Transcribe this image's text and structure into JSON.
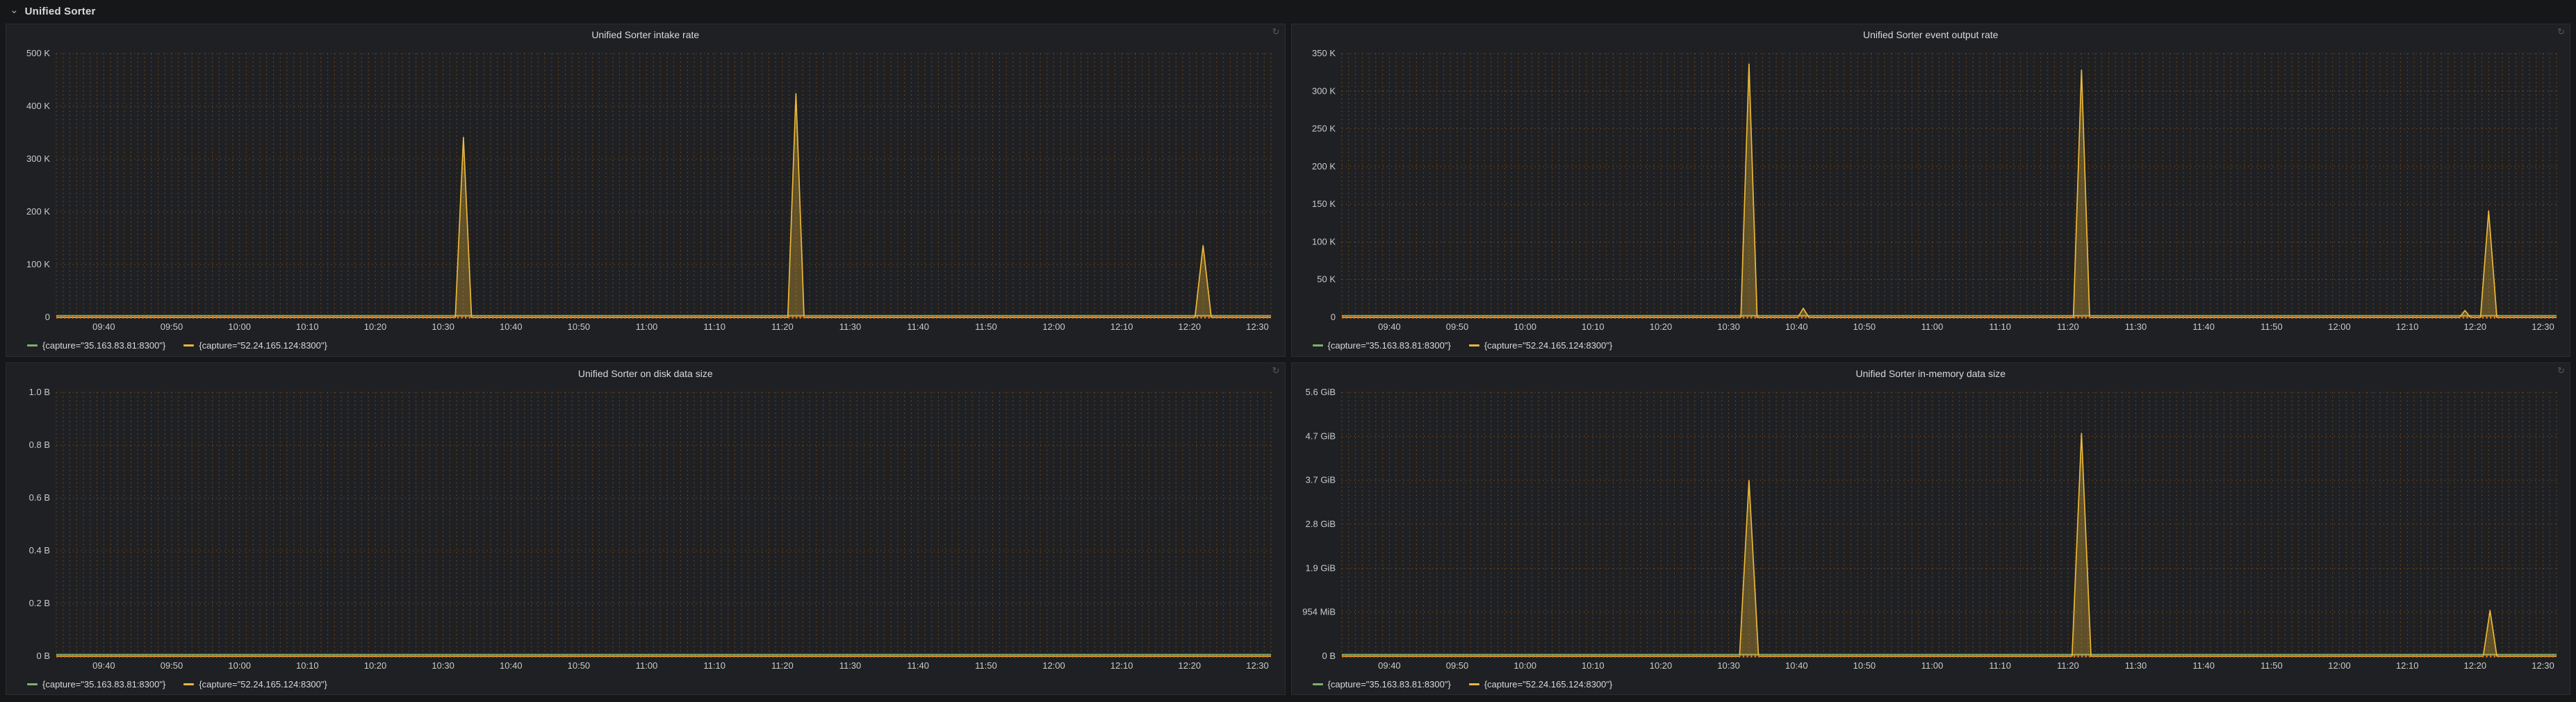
{
  "row": {
    "title": "Unified Sorter",
    "collapse_icon": "⌄"
  },
  "colors": {
    "series_green": "#7eb26d",
    "series_yellow": "#eab839",
    "baseline_orange": "#e0751d",
    "grid_dots": "#d97c17",
    "panel_bg": "#1f2023",
    "page_bg": "#161719"
  },
  "x_axis": {
    "domain_minutes": [
      573,
      752
    ],
    "tick_minutes": [
      580,
      590,
      600,
      610,
      620,
      630,
      640,
      650,
      660,
      670,
      680,
      690,
      700,
      710,
      720,
      730,
      740,
      750
    ],
    "ticks": [
      "09:40",
      "09:50",
      "10:00",
      "10:10",
      "10:20",
      "10:30",
      "10:40",
      "10:50",
      "11:00",
      "11:10",
      "11:20",
      "11:30",
      "11:40",
      "11:50",
      "12:00",
      "12:10",
      "12:20",
      "12:30"
    ]
  },
  "panels": [
    {
      "title": "Unified Sorter intake rate",
      "legend": [
        {
          "label": "{capture=\"35.163.83.81:8300\"}",
          "color": "#7eb26d"
        },
        {
          "label": "{capture=\"52.24.165.124:8300\"}",
          "color": "#eab839"
        }
      ],
      "chart_data": {
        "type": "line",
        "ylim": [
          0,
          500000
        ],
        "y_ticks": {
          "values": [
            0,
            100000,
            200000,
            300000,
            400000,
            500000
          ],
          "labels": [
            "0",
            "100 K",
            "200 K",
            "300 K",
            "400 K",
            "500 K"
          ]
        },
        "series": [
          {
            "name": "{capture=\"35.163.83.81:8300\"}",
            "color": "#7eb26d",
            "dy": -2.5,
            "points": [
              [
                573,
                0
              ],
              [
                752,
                0
              ]
            ]
          },
          {
            "name": "{capture=\"52.24.165.124:8300\"}",
            "color": "#eab839",
            "fill": true,
            "points": [
              [
                573,
                0
              ],
              [
                631.8,
                0
              ],
              [
                633,
                341000
              ],
              [
                634.2,
                0
              ],
              [
                680.8,
                0
              ],
              [
                682,
                424000
              ],
              [
                683.2,
                0
              ],
              [
                740.8,
                0
              ],
              [
                742,
                136000
              ],
              [
                743.2,
                0
              ],
              [
                752,
                0
              ]
            ]
          }
        ]
      }
    },
    {
      "title": "Unified Sorter event output rate",
      "legend": [
        {
          "label": "{capture=\"35.163.83.81:8300\"}",
          "color": "#7eb26d"
        },
        {
          "label": "{capture=\"52.24.165.124:8300\"}",
          "color": "#eab839"
        }
      ],
      "chart_data": {
        "type": "line",
        "ylim": [
          0,
          350000
        ],
        "y_ticks": {
          "values": [
            0,
            50000,
            100000,
            150000,
            200000,
            250000,
            300000,
            350000
          ],
          "labels": [
            "0",
            "50 K",
            "100 K",
            "150 K",
            "200 K",
            "250 K",
            "300 K",
            "350 K"
          ]
        },
        "series": [
          {
            "name": "{capture=\"35.163.83.81:8300\"}",
            "color": "#7eb26d",
            "dy": -2.5,
            "points": [
              [
                573,
                0
              ],
              [
                752,
                0
              ]
            ]
          },
          {
            "name": "{capture=\"52.24.165.124:8300\"}",
            "color": "#eab839",
            "fill": true,
            "points": [
              [
                573,
                0
              ],
              [
                631.8,
                0
              ],
              [
                633,
                336000
              ],
              [
                634.2,
                0
              ],
              [
                640.2,
                0
              ],
              [
                641,
                12000
              ],
              [
                641.8,
                0
              ],
              [
                680.8,
                0
              ],
              [
                682,
                328000
              ],
              [
                683.2,
                0
              ],
              [
                737.7,
                0
              ],
              [
                738.5,
                9000
              ],
              [
                739.3,
                0
              ],
              [
                740.8,
                0
              ],
              [
                742,
                141000
              ],
              [
                743.2,
                0
              ],
              [
                752,
                0
              ]
            ]
          }
        ]
      }
    },
    {
      "title": "Unified Sorter on disk data size",
      "legend": [
        {
          "label": "{capture=\"35.163.83.81:8300\"}",
          "color": "#7eb26d"
        },
        {
          "label": "{capture=\"52.24.165.124:8300\"}",
          "color": "#eab839"
        }
      ],
      "chart_data": {
        "type": "line",
        "ylim": [
          0,
          1.0
        ],
        "y_ticks": {
          "values": [
            0,
            0.2,
            0.4,
            0.6,
            0.8,
            1.0
          ],
          "labels": [
            "0 B",
            "0.2 B",
            "0.4 B",
            "0.6 B",
            "0.8 B",
            "1.0 B"
          ]
        },
        "series": [
          {
            "name": "{capture=\"35.163.83.81:8300\"}",
            "color": "#7eb26d",
            "dy": -2.5,
            "points": [
              [
                573,
                0
              ],
              [
                752,
                0
              ]
            ]
          },
          {
            "name": "{capture=\"52.24.165.124:8300\"}",
            "color": "#eab839",
            "points": [
              [
                573,
                0
              ],
              [
                752,
                0
              ]
            ]
          }
        ]
      }
    },
    {
      "title": "Unified Sorter in-memory data size",
      "legend": [
        {
          "label": "{capture=\"35.163.83.81:8300\"}",
          "color": "#7eb26d"
        },
        {
          "label": "{capture=\"52.24.165.124:8300\"}",
          "color": "#eab839"
        }
      ],
      "chart_data": {
        "type": "line",
        "ylim": [
          0,
          5.59
        ],
        "y_ticks": {
          "values": [
            0,
            0.932,
            1.863,
            2.795,
            3.726,
            4.658,
            5.59
          ],
          "labels": [
            "0 B",
            "954 MiB",
            "1.9 GiB",
            "2.8 GiB",
            "3.7 GiB",
            "4.7 GiB",
            "5.6 GiB"
          ]
        },
        "series": [
          {
            "name": "{capture=\"35.163.83.81:8300\"}",
            "color": "#7eb26d",
            "dy": -2.5,
            "points": [
              [
                573,
                0
              ],
              [
                752,
                0
              ]
            ]
          },
          {
            "name": "{capture=\"52.24.165.124:8300\"}",
            "color": "#eab839",
            "fill": true,
            "points": [
              [
                573,
                0
              ],
              [
                631.6,
                0
              ],
              [
                633,
                3.72
              ],
              [
                634.4,
                0
              ],
              [
                680.6,
                0
              ],
              [
                682,
                4.72
              ],
              [
                683.4,
                0
              ],
              [
                741.2,
                0
              ],
              [
                742.2,
                0.97
              ],
              [
                743.2,
                0
              ],
              [
                752,
                0
              ]
            ]
          }
        ]
      }
    }
  ]
}
